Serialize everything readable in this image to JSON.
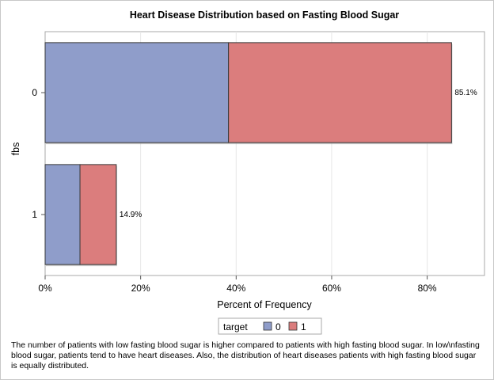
{
  "chart_data": {
    "type": "bar",
    "orientation": "horizontal",
    "stacked": true,
    "title": "Heart Disease Distribution based on Fasting Blood Sugar",
    "xlabel": "Percent of Frequency",
    "ylabel": "fbs",
    "categories": [
      "0",
      "1"
    ],
    "xlim": [
      0,
      92
    ],
    "xticks": [
      0,
      20,
      40,
      60,
      80
    ],
    "xtick_labels": [
      "0%",
      "20%",
      "40%",
      "60%",
      "80%"
    ],
    "grid": true,
    "series": [
      {
        "name": "0",
        "values": [
          38.4,
          7.3
        ],
        "color": "#8f9dca"
      },
      {
        "name": "1",
        "values": [
          46.7,
          7.6
        ],
        "color": "#db7d7d"
      }
    ],
    "totals_labels": [
      "85.1%",
      "14.9%"
    ],
    "legend": {
      "title": "target",
      "position": "bottom"
    }
  },
  "footnote": "The number of patients with low fasting blood sugar is higher compared to patients with high fasting blood sugar. In low\\nfasting blood sugar, patients tend to have heart diseases. Also, the distribution of heart diseases patients with high fasting blood sugar is equally distributed."
}
